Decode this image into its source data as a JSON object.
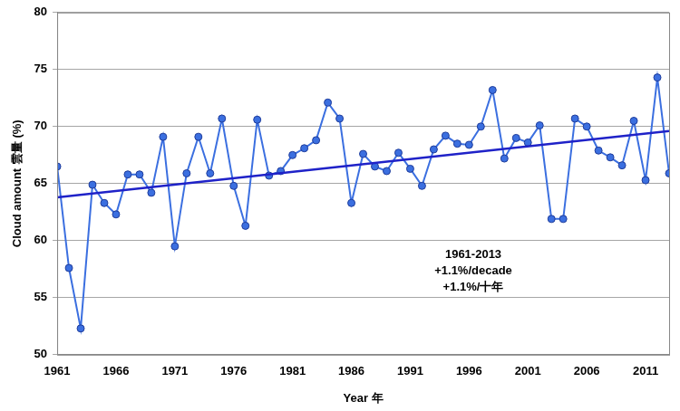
{
  "chart_data": {
    "type": "line",
    "x": [
      1961,
      1962,
      1963,
      1964,
      1965,
      1966,
      1967,
      1968,
      1969,
      1970,
      1971,
      1972,
      1973,
      1974,
      1975,
      1976,
      1977,
      1978,
      1979,
      1980,
      1981,
      1982,
      1983,
      1984,
      1985,
      1986,
      1987,
      1988,
      1989,
      1990,
      1991,
      1992,
      1993,
      1994,
      1995,
      1996,
      1997,
      1998,
      1999,
      2000,
      2001,
      2002,
      2003,
      2004,
      2005,
      2006,
      2007,
      2008,
      2009,
      2010,
      2011,
      2012,
      2013
    ],
    "series": [
      {
        "color": "#3b6fe0",
        "marker": "circle",
        "line_style": "solid",
        "values": [
          66.5,
          57.6,
          52.3,
          64.9,
          63.3,
          62.3,
          65.8,
          65.8,
          64.2,
          69.1,
          59.5,
          65.9,
          69.1,
          65.9,
          70.7,
          64.8,
          61.3,
          70.6,
          65.7,
          66.1,
          67.5,
          68.1,
          68.8,
          72.1,
          70.7,
          63.3,
          67.6,
          66.5,
          66.1,
          67.7,
          66.3,
          64.8,
          68.0,
          69.2,
          68.5,
          68.4,
          70.0,
          73.2,
          67.2,
          69.0,
          68.6,
          70.1,
          61.9,
          61.9,
          70.7,
          70.0,
          67.9,
          67.3,
          66.6,
          70.5,
          65.3,
          74.3,
          65.9
        ]
      },
      {
        "color": "#1f22c8",
        "marker": "none",
        "line_style": "solid",
        "type": "line",
        "x": [
          1961,
          2013
        ],
        "values": [
          63.8,
          69.6
        ]
      }
    ],
    "xlim": [
      1961,
      2013
    ],
    "xticks": [
      1961,
      1966,
      1971,
      1976,
      1981,
      1986,
      1991,
      1996,
      2001,
      2006,
      2011
    ],
    "ylim": [
      50,
      80
    ],
    "yticks": [
      50,
      55,
      60,
      65,
      70,
      75,
      80
    ],
    "x_label": "Year 年",
    "y_label": "Cloud amount 雲量 (%)",
    "annotations": [
      "1961-2013",
      "+1.1%/decade",
      "+1.1%/十年"
    ],
    "grid": true
  }
}
